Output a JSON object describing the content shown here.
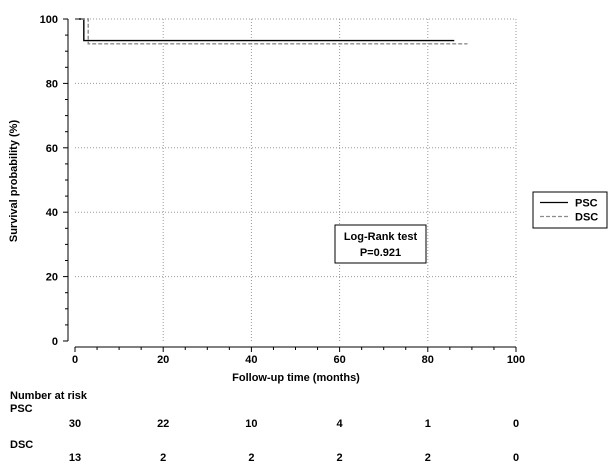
{
  "chart_data": {
    "type": "line",
    "step": true,
    "xlabel": "Follow-up time (months)",
    "ylabel": "Survival probability (%)",
    "xlim": [
      0,
      100
    ],
    "ylim": [
      0,
      100
    ],
    "xticks": [
      0,
      20,
      40,
      60,
      80,
      100
    ],
    "yticks": [
      0,
      20,
      40,
      60,
      80,
      100
    ],
    "grid": true,
    "legend_position": "right",
    "series": [
      {
        "name": "PSC",
        "style": "solid",
        "color": "#000000",
        "x": [
          0,
          2,
          2,
          86
        ],
        "y": [
          100,
          100,
          93.3,
          93.3
        ]
      },
      {
        "name": "DSC",
        "style": "dashed",
        "color": "#8c8c8c",
        "x": [
          0,
          3,
          3,
          89
        ],
        "y": [
          100,
          100,
          92.3,
          92.3
        ]
      }
    ],
    "annotation": {
      "line1": "Log-Rank test",
      "line2": "P=0.921"
    },
    "risk_table": {
      "title": "Number at risk",
      "times": [
        0,
        20,
        40,
        60,
        80,
        100
      ],
      "rows": [
        {
          "label": "PSC",
          "values": [
            30,
            22,
            10,
            4,
            1,
            0
          ]
        },
        {
          "label": "DSC",
          "values": [
            13,
            2,
            2,
            2,
            2,
            0
          ]
        }
      ]
    }
  }
}
